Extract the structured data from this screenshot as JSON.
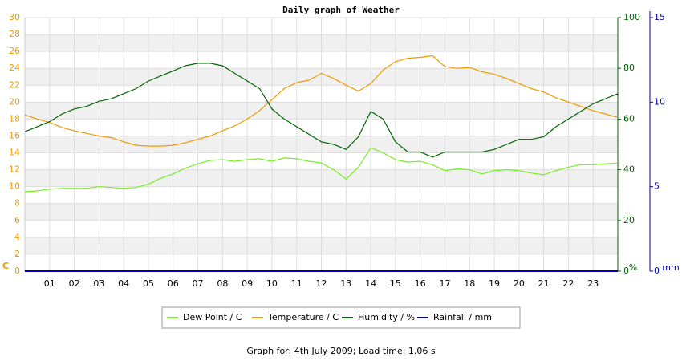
{
  "chart_data": {
    "type": "line",
    "title": "Daily graph of Weather",
    "footer": "Graph for: 4th July 2009; Load time: 1.06 s",
    "y_label": "C",
    "y2_label": "%",
    "y3_label": "mm",
    "x": [
      0,
      0.5,
      1,
      1.5,
      2,
      2.5,
      3,
      3.5,
      4,
      4.5,
      5,
      5.5,
      6,
      6.5,
      7,
      7.5,
      8,
      8.5,
      9,
      9.5,
      10,
      10.5,
      11,
      11.5,
      12,
      12.5,
      13,
      13.5,
      14,
      14.5,
      15,
      15.5,
      16,
      16.5,
      17,
      17.5,
      18,
      18.5,
      19,
      19.5,
      20,
      20.5,
      21,
      21.5,
      22,
      22.5,
      23,
      23.5,
      24
    ],
    "xlim": [
      0,
      24
    ],
    "xticks": [
      {
        "value": 1,
        "label": "01"
      },
      {
        "value": 2,
        "label": "02"
      },
      {
        "value": 3,
        "label": "03"
      },
      {
        "value": 4,
        "label": "04"
      },
      {
        "value": 5,
        "label": "05"
      },
      {
        "value": 6,
        "label": "06"
      },
      {
        "value": 7,
        "label": "07"
      },
      {
        "value": 8,
        "label": "08"
      },
      {
        "value": 9,
        "label": "09"
      },
      {
        "value": 10,
        "label": "10"
      },
      {
        "value": 11,
        "label": "11"
      },
      {
        "value": 12,
        "label": "12"
      },
      {
        "value": 13,
        "label": "13"
      },
      {
        "value": 14,
        "label": "14"
      },
      {
        "value": 15,
        "label": "15"
      },
      {
        "value": 16,
        "label": "16"
      },
      {
        "value": 17,
        "label": "17"
      },
      {
        "value": 18,
        "label": "18"
      },
      {
        "value": 19,
        "label": "19"
      },
      {
        "value": 20,
        "label": "20"
      },
      {
        "value": 21,
        "label": "21"
      },
      {
        "value": 22,
        "label": "22"
      },
      {
        "value": 23,
        "label": "23"
      }
    ],
    "ylim": [
      0,
      30
    ],
    "yticks": [
      0,
      2,
      4,
      6,
      8,
      10,
      12,
      14,
      16,
      18,
      20,
      22,
      24,
      26,
      28,
      30
    ],
    "y2lim": [
      0,
      100
    ],
    "y2ticks": [
      0,
      20,
      40,
      60,
      80,
      100
    ],
    "y3lim": [
      0,
      15
    ],
    "y3ticks": [
      0,
      5,
      10,
      15
    ],
    "grid": true,
    "legend": "bottom",
    "series": [
      {
        "name": "Dew Point / C",
        "color": "#77ee22",
        "values": [
          9.4,
          9.5,
          9.7,
          9.8,
          9.8,
          9.8,
          10.0,
          9.9,
          9.8,
          9.9,
          10.3,
          11.0,
          11.5,
          12.2,
          12.7,
          13.1,
          13.2,
          13.0,
          13.2,
          13.3,
          13.0,
          13.4,
          13.3,
          13.0,
          12.8,
          12.0,
          10.9,
          12.3,
          14.6,
          14.0,
          13.2,
          12.9,
          13.0,
          12.6,
          11.9,
          12.1,
          12.0,
          11.5,
          11.9,
          12.0,
          11.9,
          11.6,
          11.4,
          11.9,
          12.3,
          12.6,
          12.6,
          12.7,
          12.8
        ]
      },
      {
        "name": "Temperature / C",
        "color": "#ee9900",
        "values": [
          18.5,
          18.0,
          17.6,
          17.0,
          16.6,
          16.3,
          16.0,
          15.8,
          15.3,
          14.9,
          14.8,
          14.8,
          14.9,
          15.2,
          15.6,
          16.0,
          16.6,
          17.2,
          18.0,
          19.0,
          20.3,
          21.6,
          22.3,
          22.6,
          23.4,
          22.8,
          22.0,
          21.3,
          22.2,
          23.8,
          24.8,
          25.2,
          25.3,
          25.5,
          24.2,
          24.0,
          24.1,
          23.6,
          23.3,
          22.8,
          22.2,
          21.6,
          21.2,
          20.5,
          20.0,
          19.5,
          19.0,
          18.6,
          18.2
        ]
      },
      {
        "name": "Humidity / %",
        "color": "#006400",
        "axis": "y2",
        "values": [
          55,
          57,
          59,
          62,
          64,
          65,
          67,
          68,
          70,
          72,
          75,
          77,
          79,
          81,
          82,
          82,
          81,
          78,
          75,
          72,
          64,
          60,
          57,
          54,
          51,
          50,
          48,
          53,
          63,
          60,
          51,
          47,
          47,
          45,
          47,
          47,
          47,
          47,
          48,
          50,
          52,
          52,
          53,
          57,
          60,
          63,
          66,
          68,
          70
        ]
      },
      {
        "name": "Rainfall / mm",
        "color": "#0000aa",
        "axis": "y3",
        "values": [
          0,
          0,
          0,
          0,
          0,
          0,
          0,
          0,
          0,
          0,
          0,
          0,
          0,
          0,
          0,
          0,
          0,
          0,
          0,
          0,
          0,
          0,
          0,
          0,
          0,
          0,
          0,
          0,
          0,
          0,
          0,
          0,
          0,
          0,
          0,
          0,
          0,
          0,
          0,
          0,
          0,
          0,
          0,
          0,
          0,
          0,
          0,
          0,
          0
        ]
      }
    ]
  }
}
